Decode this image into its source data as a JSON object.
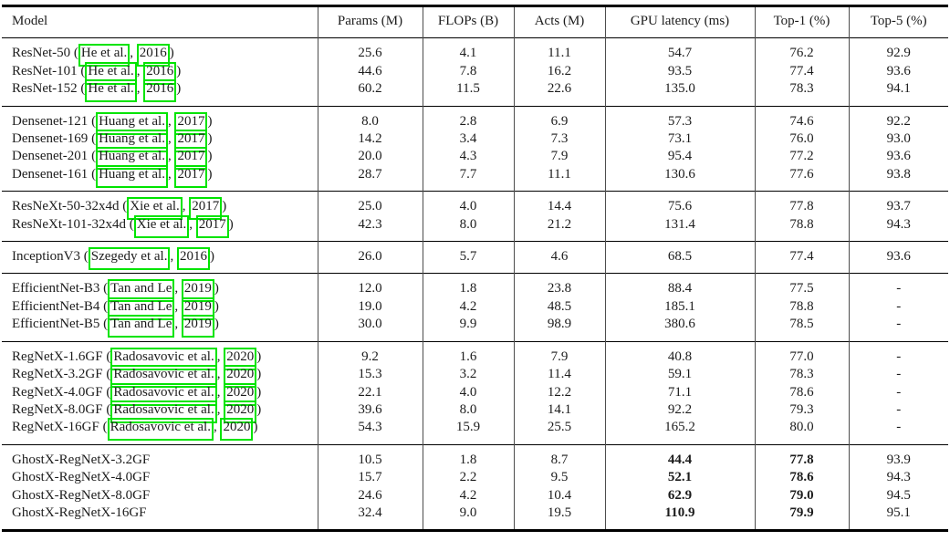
{
  "table": {
    "header": [
      "Model",
      "Params (M)",
      "FLOPs (B)",
      "Acts (M)",
      "GPU latency (ms)",
      "Top-1 (%)",
      "Top-5 (%)"
    ],
    "link_box_color": "#00e400",
    "cite_format": {
      "open": " (",
      "sep": ", ",
      "close": ")"
    },
    "groups": [
      {
        "rows": [
          {
            "model": "ResNet-50",
            "authors": "He et al.",
            "year": "2016",
            "values": [
              "25.6",
              "4.1",
              "11.1",
              "54.7",
              "76.2",
              "92.9"
            ],
            "bold_cols": []
          },
          {
            "model": "ResNet-101",
            "authors": "He et al.",
            "year": "2016",
            "values": [
              "44.6",
              "7.8",
              "16.2",
              "93.5",
              "77.4",
              "93.6"
            ],
            "bold_cols": []
          },
          {
            "model": "ResNet-152",
            "authors": "He et al.",
            "year": "2016",
            "values": [
              "60.2",
              "11.5",
              "22.6",
              "135.0",
              "78.3",
              "94.1"
            ],
            "bold_cols": []
          }
        ]
      },
      {
        "rows": [
          {
            "model": "Densenet-121",
            "authors": "Huang et al.",
            "year": "2017",
            "values": [
              "8.0",
              "2.8",
              "6.9",
              "57.3",
              "74.6",
              "92.2"
            ],
            "bold_cols": []
          },
          {
            "model": "Densenet-169",
            "authors": "Huang et al.",
            "year": "2017",
            "values": [
              "14.2",
              "3.4",
              "7.3",
              "73.1",
              "76.0",
              "93.0"
            ],
            "bold_cols": []
          },
          {
            "model": "Densenet-201",
            "authors": "Huang et al.",
            "year": "2017",
            "values": [
              "20.0",
              "4.3",
              "7.9",
              "95.4",
              "77.2",
              "93.6"
            ],
            "bold_cols": []
          },
          {
            "model": "Densenet-161",
            "authors": "Huang et al.",
            "year": "2017",
            "values": [
              "28.7",
              "7.7",
              "11.1",
              "130.6",
              "77.6",
              "93.8"
            ],
            "bold_cols": []
          }
        ]
      },
      {
        "rows": [
          {
            "model": "ResNeXt-50-32x4d",
            "authors": "Xie et al.",
            "year": "2017",
            "values": [
              "25.0",
              "4.0",
              "14.4",
              "75.6",
              "77.8",
              "93.7"
            ],
            "bold_cols": []
          },
          {
            "model": "ResNeXt-101-32x4d",
            "authors": "Xie et al.",
            "year": "2017",
            "values": [
              "42.3",
              "8.0",
              "21.2",
              "131.4",
              "78.8",
              "94.3"
            ],
            "bold_cols": []
          }
        ]
      },
      {
        "rows": [
          {
            "model": "InceptionV3",
            "authors": "Szegedy et al.",
            "year": "2016",
            "values": [
              "26.0",
              "5.7",
              "4.6",
              "68.5",
              "77.4",
              "93.6"
            ],
            "bold_cols": []
          }
        ]
      },
      {
        "rows": [
          {
            "model": "EfficientNet-B3",
            "authors": "Tan and Le",
            "year": "2019",
            "values": [
              "12.0",
              "1.8",
              "23.8",
              "88.4",
              "77.5",
              "-"
            ],
            "bold_cols": []
          },
          {
            "model": "EfficientNet-B4",
            "authors": "Tan and Le",
            "year": "2019",
            "values": [
              "19.0",
              "4.2",
              "48.5",
              "185.1",
              "78.8",
              "-"
            ],
            "bold_cols": []
          },
          {
            "model": "EfficientNet-B5",
            "authors": "Tan and Le",
            "year": "2019",
            "values": [
              "30.0",
              "9.9",
              "98.9",
              "380.6",
              "78.5",
              "-"
            ],
            "bold_cols": []
          }
        ]
      },
      {
        "rows": [
          {
            "model": "RegNetX-1.6GF",
            "authors": "Radosavovic et al.",
            "year": "2020",
            "values": [
              "9.2",
              "1.6",
              "7.9",
              "40.8",
              "77.0",
              "-"
            ],
            "bold_cols": []
          },
          {
            "model": "RegNetX-3.2GF",
            "authors": "Radosavovic et al.",
            "year": "2020",
            "values": [
              "15.3",
              "3.2",
              "11.4",
              "59.1",
              "78.3",
              "-"
            ],
            "bold_cols": []
          },
          {
            "model": "RegNetX-4.0GF",
            "authors": "Radosavovic et al.",
            "year": "2020",
            "values": [
              "22.1",
              "4.0",
              "12.2",
              "71.1",
              "78.6",
              "-"
            ],
            "bold_cols": []
          },
          {
            "model": "RegNetX-8.0GF",
            "authors": "Radosavovic et al.",
            "year": "2020",
            "values": [
              "39.6",
              "8.0",
              "14.1",
              "92.2",
              "79.3",
              "-"
            ],
            "bold_cols": []
          },
          {
            "model": "RegNetX-16GF",
            "authors": "Radosavovic et al.",
            "year": "2020",
            "values": [
              "54.3",
              "15.9",
              "25.5",
              "165.2",
              "80.0",
              "-"
            ],
            "bold_cols": []
          }
        ]
      },
      {
        "rows": [
          {
            "model": "GhostX-RegNetX-3.2GF",
            "values": [
              "10.5",
              "1.8",
              "8.7",
              "44.4",
              "77.8",
              "93.9"
            ],
            "bold_cols": [
              3,
              4
            ]
          },
          {
            "model": "GhostX-RegNetX-4.0GF",
            "values": [
              "15.7",
              "2.2",
              "9.5",
              "52.1",
              "78.6",
              "94.3"
            ],
            "bold_cols": [
              3,
              4
            ]
          },
          {
            "model": "GhostX-RegNetX-8.0GF",
            "values": [
              "24.6",
              "4.2",
              "10.4",
              "62.9",
              "79.0",
              "94.5"
            ],
            "bold_cols": [
              3,
              4
            ]
          },
          {
            "model": "GhostX-RegNetX-16GF",
            "values": [
              "32.4",
              "9.0",
              "19.5",
              "110.9",
              "79.9",
              "95.1"
            ],
            "bold_cols": [
              3,
              4
            ]
          }
        ]
      }
    ]
  }
}
